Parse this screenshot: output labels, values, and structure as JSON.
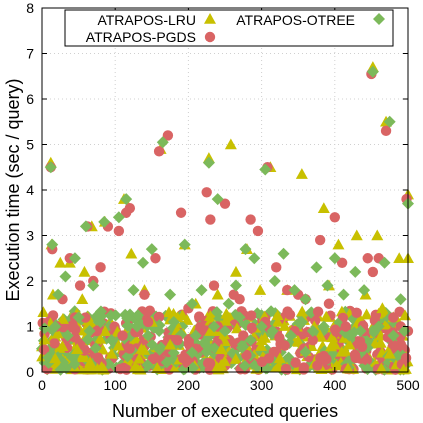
{
  "chart_data": {
    "type": "scatter",
    "title": "",
    "xlabel": "Number of executed queries",
    "ylabel": "Execution time (sec / query)",
    "xlim": [
      0,
      500
    ],
    "ylim": [
      0,
      8
    ],
    "xticks": [
      0,
      100,
      200,
      300,
      400,
      500
    ],
    "yticks": [
      0,
      1,
      2,
      3,
      4,
      5,
      6,
      7,
      8
    ],
    "grid": true,
    "legend_position": "top",
    "series": [
      {
        "name": "ATRAPOS-LRU",
        "marker": "triangle",
        "color": "#c8c000",
        "x": [
          12,
          13,
          25,
          38,
          58,
          68,
          86,
          112,
          122,
          140,
          162,
          185,
          195,
          210,
          228,
          240,
          258,
          265,
          280,
          298,
          312,
          322,
          335,
          355,
          372,
          385,
          392,
          405,
          430,
          442,
          452,
          458,
          470,
          488,
          500,
          505,
          15,
          55,
          150,
          230,
          300,
          380,
          420,
          465,
          480,
          18,
          48,
          95,
          175,
          245,
          325,
          400,
          475
        ],
        "y": [
          4.6,
          2.8,
          2.4,
          2.4,
          2.2,
          3.2,
          3.3,
          3.8,
          2.6,
          1.8,
          4.9,
          1.2,
          2.8,
          1.5,
          4.7,
          1.7,
          5.0,
          2.2,
          2.7,
          1.8,
          4.5,
          1.1,
          1.8,
          4.35,
          1.0,
          3.6,
          1.9,
          2.8,
          3.0,
          1.7,
          6.7,
          3.0,
          5.5,
          2.5,
          3.9,
          2.5,
          1.7,
          1.6,
          1.1,
          0.9,
          0.7,
          0.8,
          0.6,
          1.4,
          1.2,
          0.3,
          0.5,
          0.4,
          0.6,
          0.5,
          0.3,
          0.6,
          0.4
        ]
      },
      {
        "name": "ATRAPOS-PGDS",
        "marker": "circle",
        "color": "#d96464",
        "x": [
          12,
          14,
          28,
          38,
          52,
          62,
          70,
          80,
          90,
          105,
          115,
          120,
          140,
          155,
          160,
          172,
          190,
          200,
          225,
          230,
          235,
          250,
          262,
          270,
          285,
          295,
          308,
          320,
          335,
          350,
          360,
          380,
          392,
          400,
          410,
          430,
          445,
          450,
          452,
          460,
          470,
          480,
          498,
          505,
          20,
          45,
          75,
          110,
          145,
          185,
          215,
          240,
          275,
          305,
          345,
          370,
          415,
          440,
          475,
          490
        ],
        "y": [
          4.5,
          2.7,
          1.6,
          2.5,
          1.9,
          3.2,
          2.0,
          2.3,
          3.2,
          3.1,
          3.5,
          3.6,
          1.7,
          2.5,
          4.85,
          5.2,
          3.5,
          1.4,
          3.95,
          3.35,
          1.9,
          3.7,
          1.7,
          1.6,
          3.35,
          3.1,
          4.5,
          2.3,
          1.8,
          1.7,
          1.6,
          2.9,
          1.5,
          3.4,
          2.4,
          1.3,
          2.5,
          6.55,
          2.2,
          2.5,
          5.3,
          1.2,
          3.8,
          0.9,
          1.0,
          1.2,
          0.9,
          0.8,
          1.1,
          0.7,
          0.9,
          1.0,
          0.8,
          1.1,
          0.9,
          0.7,
          1.0,
          0.9,
          0.8,
          1.0
        ]
      },
      {
        "name": "ATRAPOS-OTREE",
        "marker": "diamond",
        "color": "#7cb95a",
        "x": [
          12,
          14,
          22,
          32,
          45,
          60,
          70,
          85,
          105,
          115,
          125,
          138,
          150,
          165,
          175,
          195,
          205,
          218,
          228,
          240,
          255,
          265,
          278,
          290,
          305,
          318,
          330,
          345,
          360,
          375,
          390,
          400,
          412,
          428,
          440,
          452,
          468,
          475,
          490,
          505,
          18,
          35,
          50,
          65,
          80,
          95,
          130,
          145,
          160,
          180,
          210,
          235,
          250,
          270,
          285,
          300,
          315,
          340,
          355,
          370,
          385,
          420,
          435,
          460,
          480,
          495
        ],
        "y": [
          4.5,
          2.8,
          1.7,
          2.1,
          2.5,
          3.2,
          1.9,
          3.3,
          3.4,
          3.8,
          1.8,
          2.4,
          2.7,
          5.05,
          1.7,
          2.8,
          1.5,
          1.8,
          4.6,
          3.8,
          1.5,
          1.9,
          2.7,
          2.5,
          4.45,
          2.0,
          2.6,
          1.8,
          1.6,
          2.3,
          1.9,
          2.5,
          1.7,
          2.2,
          1.8,
          6.6,
          2.4,
          5.5,
          1.6,
          3.7,
          1.0,
          0.8,
          1.2,
          0.9,
          1.1,
          0.7,
          1.0,
          0.8,
          0.9,
          1.1,
          0.8,
          1.0,
          0.9,
          1.2,
          0.7,
          1.0,
          0.9,
          0.8,
          1.1,
          0.9,
          1.0,
          0.8,
          0.9,
          1.0,
          0.8,
          0.9
        ]
      }
    ]
  },
  "decoration": {
    "dense_band_ymax": 1.3,
    "dense_band_points": 900
  }
}
